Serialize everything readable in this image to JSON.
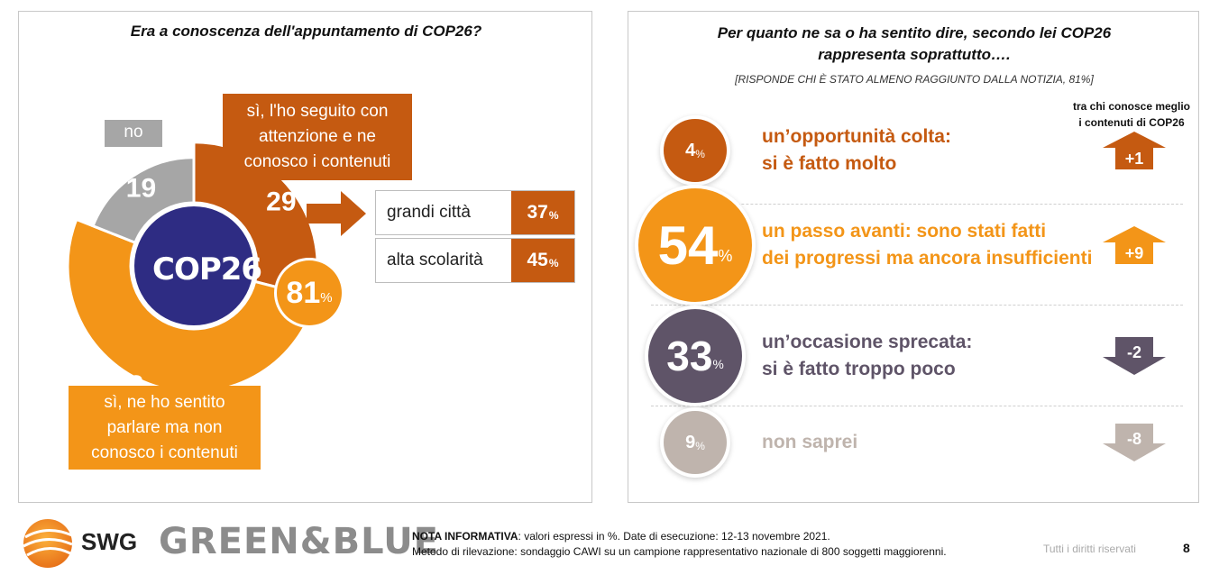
{
  "left": {
    "title": "Era a conoscenza dell'appuntamento di COP26?",
    "no_label": "no",
    "seguito_label": "sì, l'ho seguito con attenzione e ne conosco i contenuti",
    "sentito_label": "sì, ne ho sentito parlare ma non conosco i contenuti",
    "total_value": "81",
    "percent_sign": "%",
    "logo_text": "COP26",
    "table": [
      {
        "label": "grandi città",
        "value": "37"
      },
      {
        "label": "alta scolarità",
        "value": "45"
      }
    ]
  },
  "right": {
    "title_line1": "Per quanto ne sa o ha sentito dire, secondo lei COP26",
    "title_line2": "rappresenta soprattutto….",
    "subtitle": "[RISPONDE CHI È STATO ALMENO RAGGIUNTO DALLA NOTIZIA, 81%]",
    "col_header_line1": "tra chi conosce meglio",
    "col_header_line2": "i contenuti di COP26",
    "answers": [
      {
        "value": "4",
        "line1": "un’opportunità colta:",
        "line2": "si è fatto molto",
        "delta": "+1",
        "direction": "up",
        "color": "#c55a11"
      },
      {
        "value": "54",
        "line1": "un passo avanti: sono stati fatti",
        "line2": "dei progressi ma ancora insufficienti",
        "delta": "+9",
        "direction": "up",
        "color": "#f39518"
      },
      {
        "value": "33",
        "line1": "un’occasione sprecata:",
        "line2": "si è fatto troppo poco",
        "delta": "-2",
        "direction": "down",
        "color": "#5f5468"
      },
      {
        "value": "9",
        "line1": "non saprei",
        "line2": "",
        "delta": "-8",
        "direction": "down",
        "color": "#bfb4ad"
      }
    ]
  },
  "chart_data": [
    {
      "type": "pie",
      "title": "Era a conoscenza dell'appuntamento di COP26?",
      "categories": [
        "sì, l'ho seguito con attenzione e ne conosco i contenuti",
        "sì, ne ho sentito parlare ma non conosco i contenuti",
        "no"
      ],
      "values": [
        29,
        52,
        19
      ],
      "colors": [
        "#c55a11",
        "#f39518",
        "#a6a6a6"
      ],
      "total_yes": 81,
      "subgroups": [
        {
          "label": "grandi città",
          "value": 37
        },
        {
          "label": "alta scolarità",
          "value": 45
        }
      ]
    },
    {
      "type": "bar",
      "title": "Per quanto ne sa o ha sentito dire, secondo lei COP26 rappresenta soprattutto….",
      "categories": [
        "un’opportunità colta: si è fatto molto",
        "un passo avanti: sono stati fatti dei progressi ma ancora insufficienti",
        "un’occasione sprecata: si è fatto troppo poco",
        "non saprei"
      ],
      "values": [
        4,
        54,
        33,
        9
      ],
      "deltas": [
        1,
        9,
        -2,
        -8
      ]
    }
  ],
  "footer": {
    "brand1": "SWG",
    "brand2": "GREEN&BLUE",
    "nota_bold": "NOTA INFORMATIVA",
    "nota_text": ": valori espressi in %. Date di esecuzione: 12-13 novembre 2021.",
    "metodo": "Metodo di rilevazione: sondaggio CAWI su un campione rappresentativo nazionale di 800 soggetti maggiorenni.",
    "rights": "Tutti i diritti riservati",
    "page": "8"
  }
}
